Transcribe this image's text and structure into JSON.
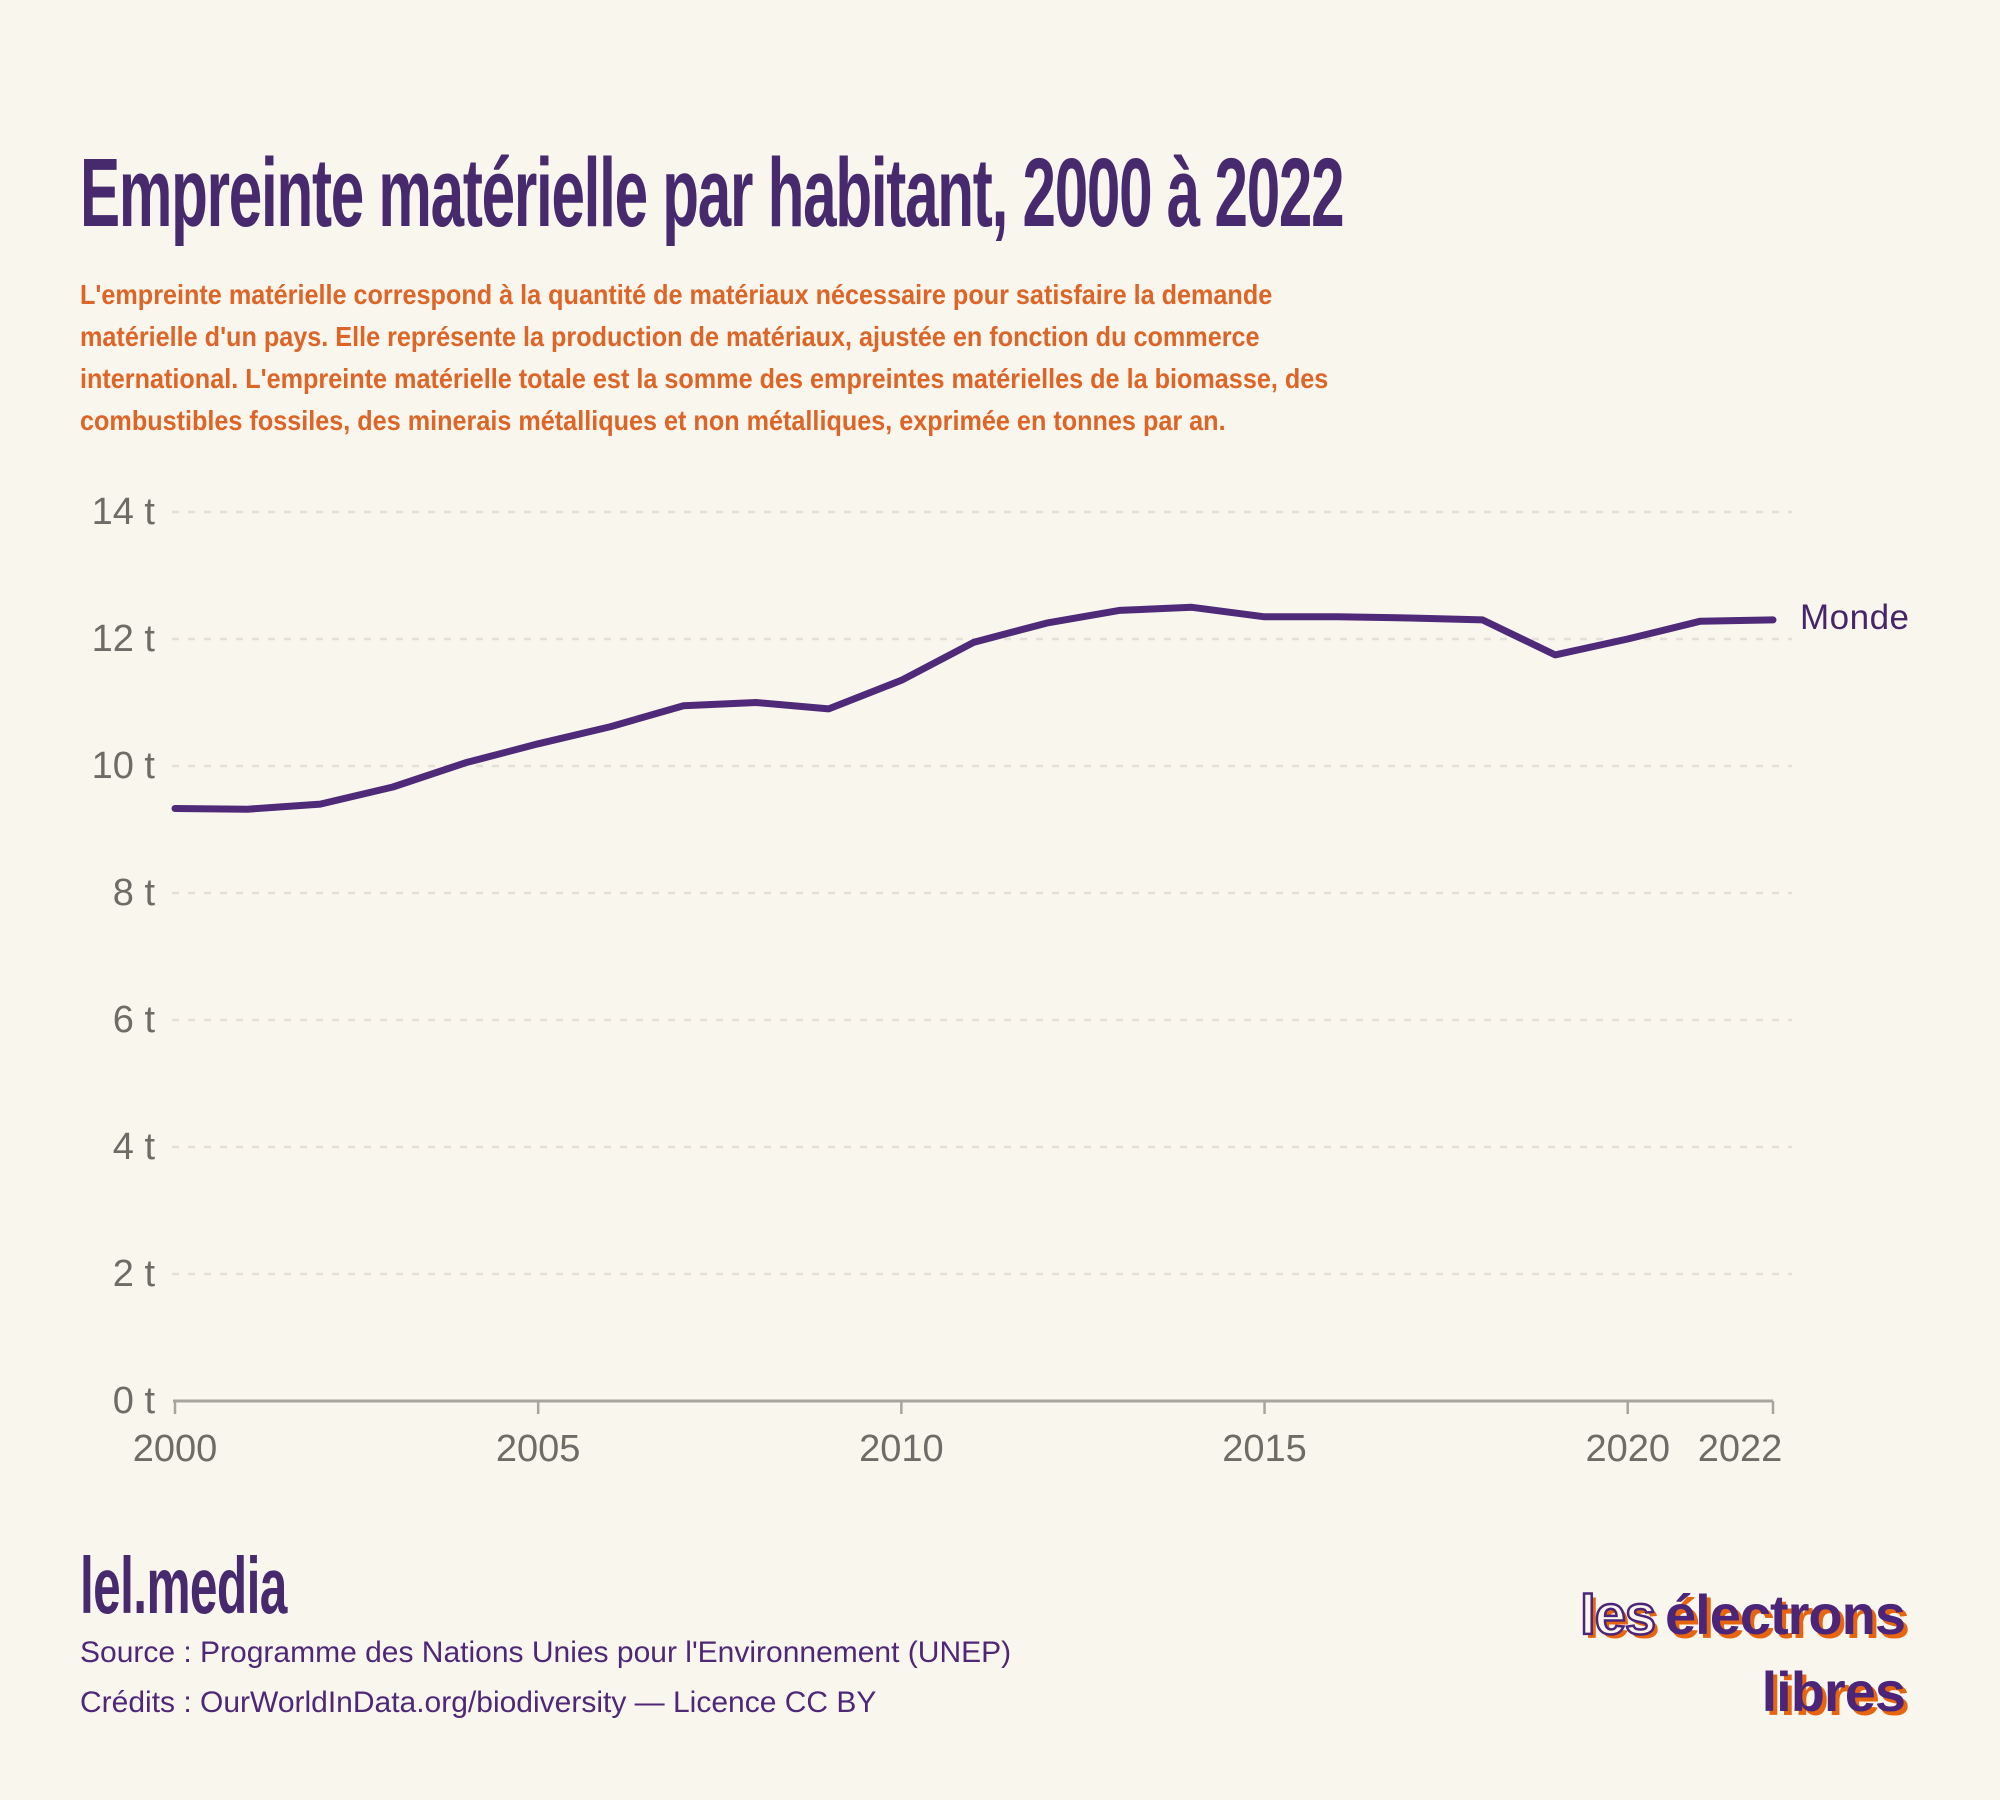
{
  "page": {
    "background_color": "#f9f6ee",
    "accent_purple": "#472a6e",
    "accent_orange": "#dd6527"
  },
  "header": {
    "title": "Empreinte matérielle par habitant, 2000 à 2022",
    "subtitle": "L'empreinte matérielle correspond à la quantité de matériaux nécessaire pour satisfaire la demande\nmatérielle d'un pays. Elle représente la production de matériaux, ajustée en fonction du commerce\ninternational. L'empreinte matérielle totale est la somme des empreintes matérielles de la biomasse, des\ncombustibles fossiles, des minerais métalliques et non métalliques, exprimée en tonnes par an."
  },
  "chart_data": {
    "type": "line",
    "title": "Empreinte matérielle par habitant, 2000 à 2022",
    "x": [
      2000,
      2001,
      2002,
      2003,
      2004,
      2005,
      2006,
      2007,
      2008,
      2009,
      2010,
      2011,
      2012,
      2013,
      2014,
      2015,
      2016,
      2017,
      2018,
      2019,
      2020,
      2021,
      2022
    ],
    "series": [
      {
        "name": "Monde",
        "color": "#4e2a78",
        "values": [
          9.33,
          9.32,
          9.4,
          9.67,
          10.05,
          10.35,
          10.62,
          10.95,
          11.0,
          10.9,
          11.35,
          11.95,
          12.25,
          12.45,
          12.5,
          12.35,
          12.35,
          12.33,
          12.3,
          11.75,
          12.0,
          12.28,
          12.3
        ]
      }
    ],
    "unit_suffix": " t",
    "xlim": [
      2000,
      2022
    ],
    "ylim": [
      0,
      14
    ],
    "x_ticks": [
      2000,
      2005,
      2010,
      2015,
      2020,
      2022
    ],
    "y_ticks": [
      {
        "value": 0,
        "label": "0 t"
      },
      {
        "value": 2,
        "label": "2 t"
      },
      {
        "value": 4,
        "label": "4 t"
      },
      {
        "value": 6,
        "label": "6 t"
      },
      {
        "value": 8,
        "label": "8 t"
      },
      {
        "value": 10,
        "label": "10 t"
      },
      {
        "value": 12,
        "label": "12 t"
      },
      {
        "value": 14,
        "label": "14 t"
      }
    ],
    "grid": "horizontal-dashed",
    "legend_position": "end-of-line",
    "line_color": "#4e2a78",
    "axis_color": "#a8a49e",
    "gridline_color": "#e4e0d7",
    "tick_label_color": "#6d6c66"
  },
  "footer": {
    "brand": "lel.media",
    "source": "Source : Programme des Nations Unies pour l'Environnement (UNEP)",
    "credits": "Crédits : OurWorldInData.org/biodiversity — Licence CC BY",
    "logo": {
      "word1": "les",
      "word2": "électrons",
      "word3": "libres"
    }
  }
}
